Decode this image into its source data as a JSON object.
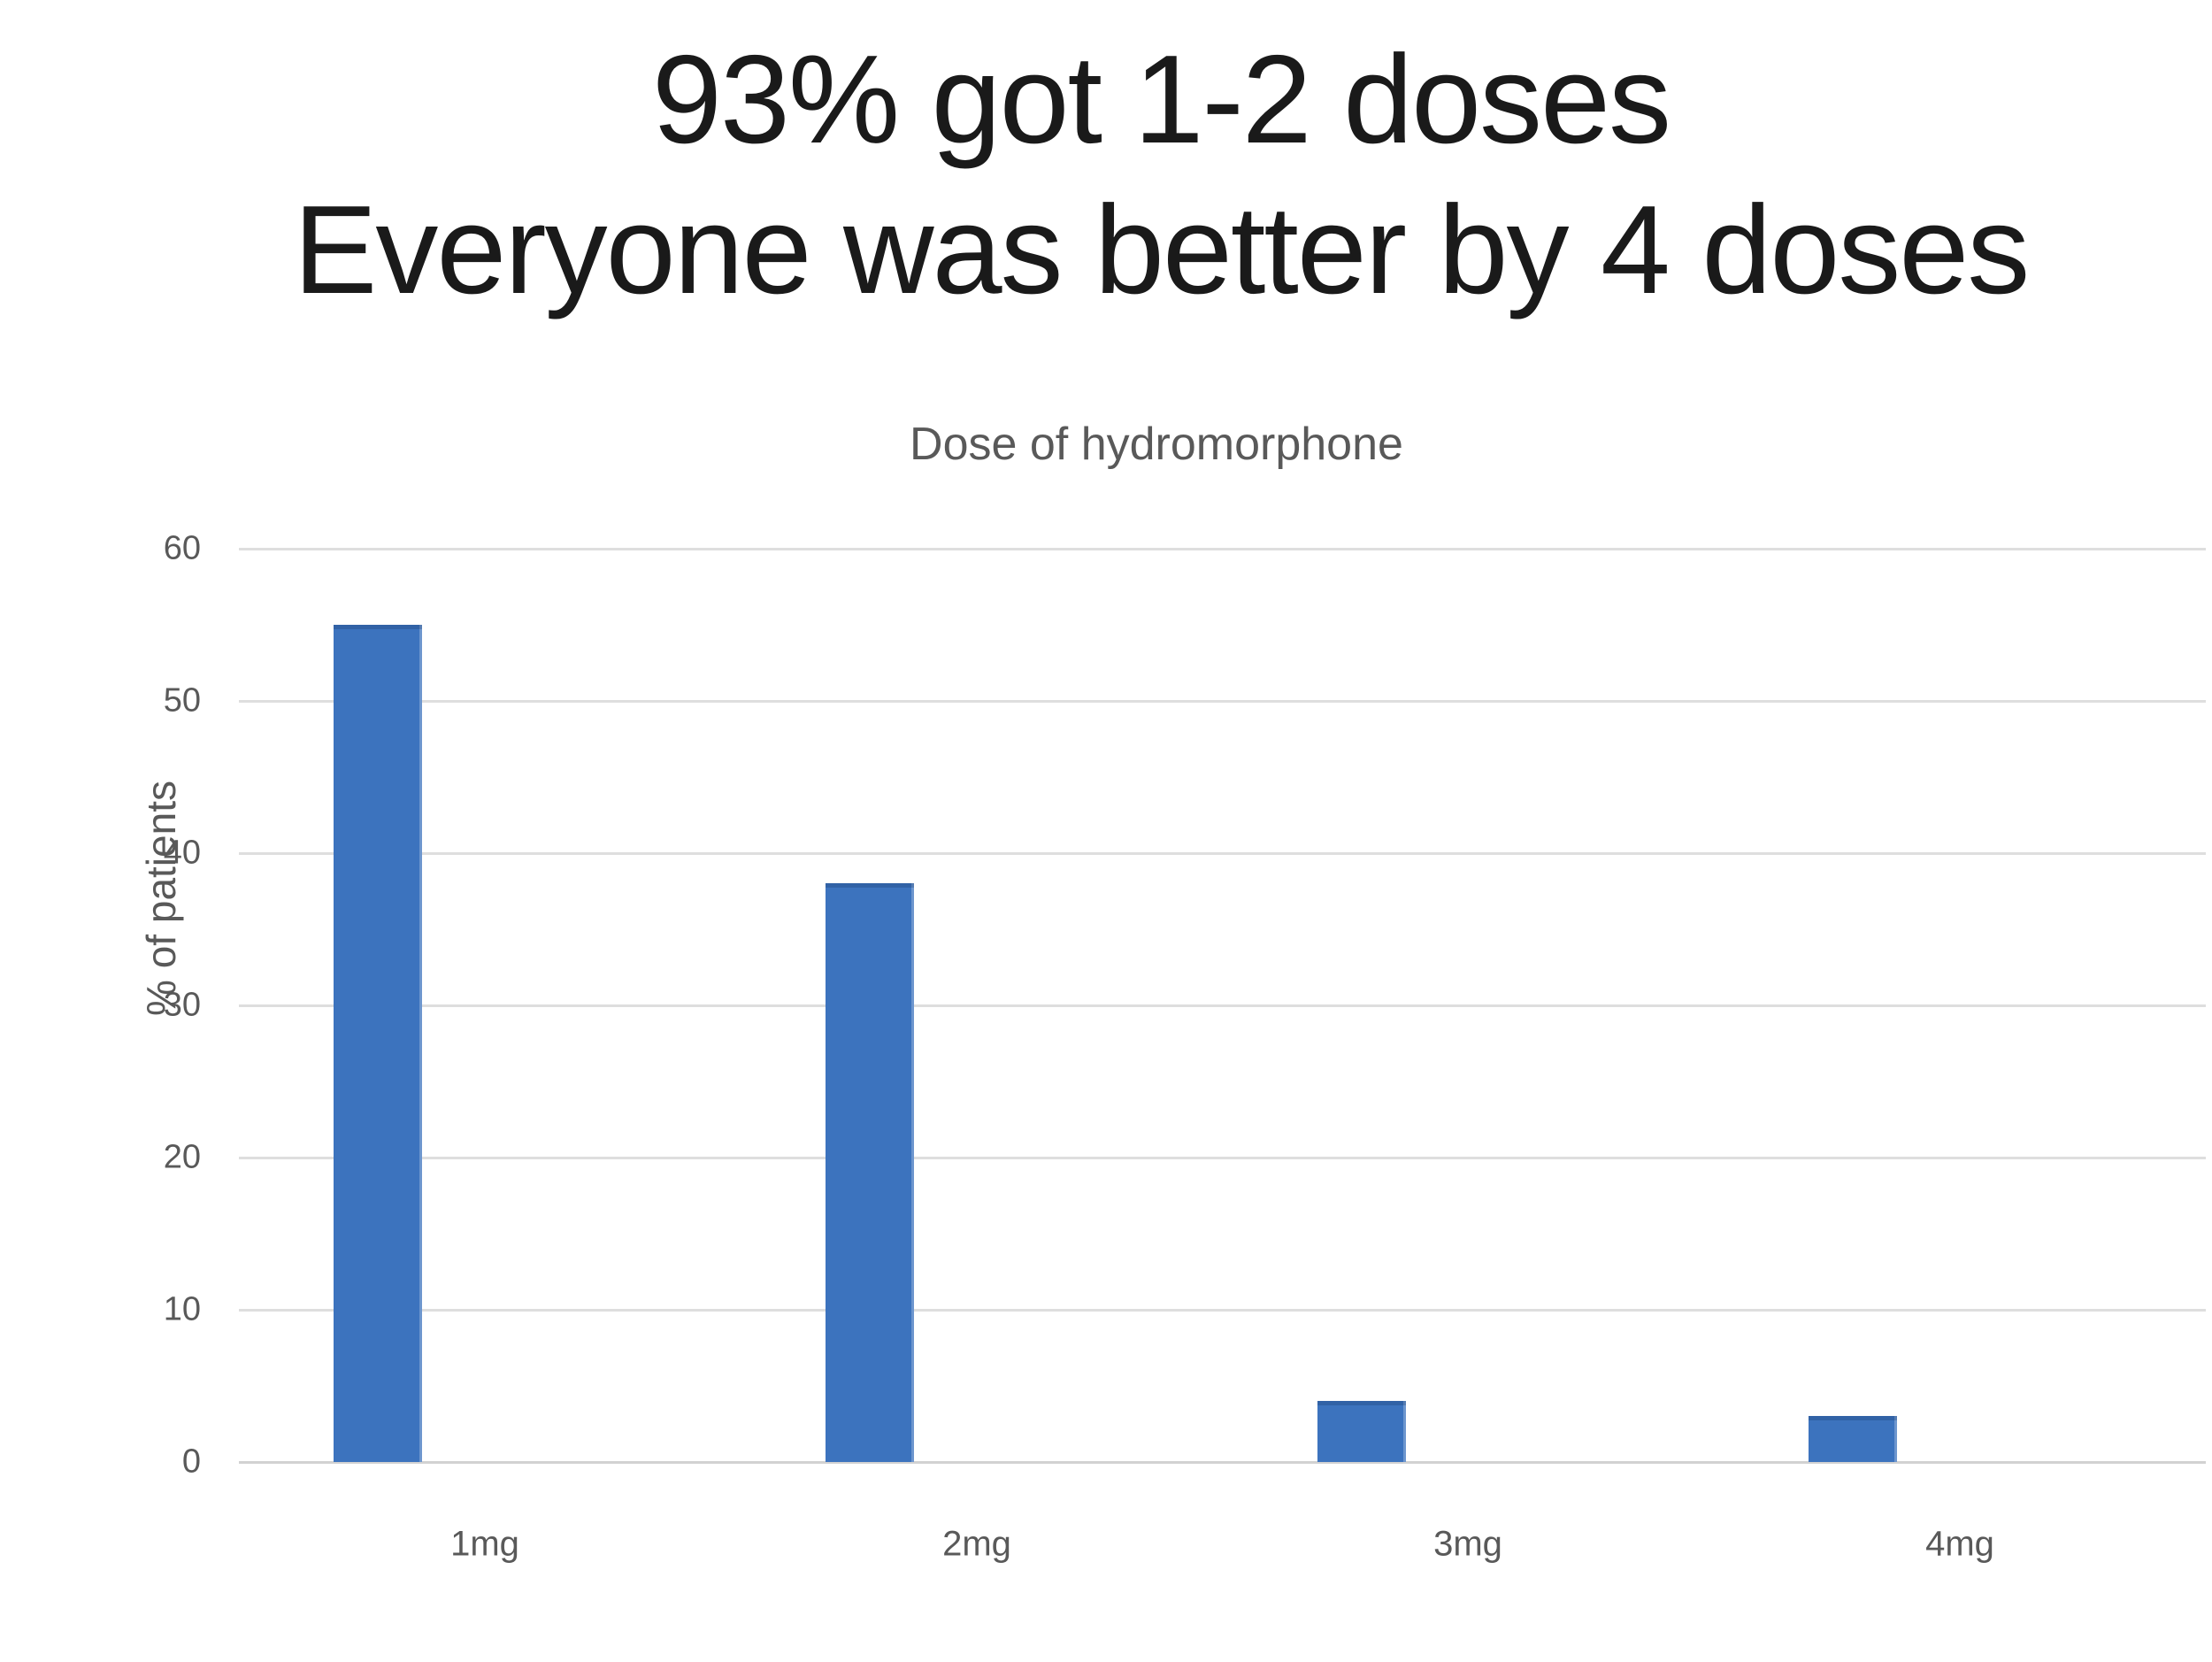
{
  "slide": {
    "title_line1": "93% got 1-2 doses",
    "title_line2": "Everyone was better by 4 doses"
  },
  "chart_data": {
    "type": "bar",
    "title": "Dose of hydromorphone",
    "categories": [
      "1mg",
      "2mg",
      "3mg",
      "4mg"
    ],
    "values": [
      55,
      38,
      4,
      3
    ],
    "series": [
      {
        "name": "% of patients",
        "values": [
          55,
          38,
          4,
          3
        ]
      }
    ],
    "xlabel": "",
    "ylabel": "% of patients",
    "ylim": [
      0,
      60
    ],
    "yticks": [
      60,
      50,
      40,
      30,
      20,
      10,
      0
    ],
    "grid": true,
    "legend": false,
    "colors": {
      "bar": "#3C73BE",
      "gridline": "#DEDEDE",
      "baseline": "#D2D2D2",
      "axis_text": "#595959",
      "title_text": "#1A1A1A"
    }
  }
}
